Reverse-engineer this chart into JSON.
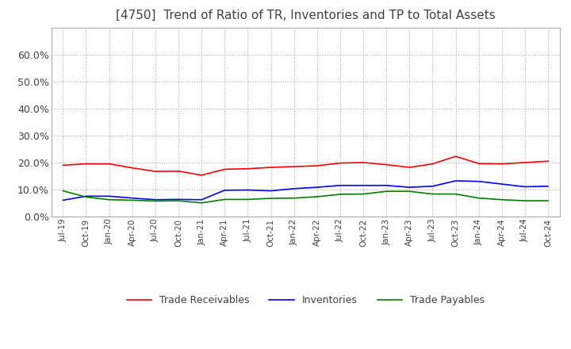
{
  "title": "[4750]  Trend of Ratio of TR, Inventories and TP to Total Assets",
  "ylim": [
    0.0,
    0.7
  ],
  "yticks": [
    0.0,
    0.1,
    0.2,
    0.3,
    0.4,
    0.5,
    0.6
  ],
  "dates": [
    "Jul-19",
    "Oct-19",
    "Jan-20",
    "Apr-20",
    "Jul-20",
    "Oct-20",
    "Jan-21",
    "Apr-21",
    "Jul-21",
    "Oct-21",
    "Jan-22",
    "Apr-22",
    "Jul-22",
    "Oct-22",
    "Jan-23",
    "Apr-23",
    "Jul-23",
    "Oct-23",
    "Jan-24",
    "Apr-24",
    "Jul-24",
    "Oct-24"
  ],
  "trade_receivables": [
    0.19,
    0.195,
    0.195,
    0.18,
    0.167,
    0.168,
    0.153,
    0.175,
    0.177,
    0.182,
    0.185,
    0.188,
    0.198,
    0.2,
    0.192,
    0.182,
    0.195,
    0.223,
    0.196,
    0.195,
    0.2,
    0.205
  ],
  "inventories": [
    0.06,
    0.075,
    0.075,
    0.068,
    0.062,
    0.063,
    0.062,
    0.097,
    0.098,
    0.095,
    0.103,
    0.108,
    0.115,
    0.115,
    0.115,
    0.108,
    0.112,
    0.132,
    0.13,
    0.12,
    0.11,
    0.112
  ],
  "trade_payables": [
    0.095,
    0.072,
    0.062,
    0.06,
    0.057,
    0.058,
    0.05,
    0.063,
    0.063,
    0.067,
    0.068,
    0.073,
    0.082,
    0.083,
    0.093,
    0.093,
    0.083,
    0.083,
    0.068,
    0.062,
    0.058,
    0.058
  ],
  "tr_color": "#FF0000",
  "inv_color": "#0000FF",
  "tp_color": "#008000",
  "background_color": "#FFFFFF",
  "grid_color": "#AAAAAA",
  "title_color": "#404040",
  "legend_labels": [
    "Trade Receivables",
    "Inventories",
    "Trade Payables"
  ]
}
